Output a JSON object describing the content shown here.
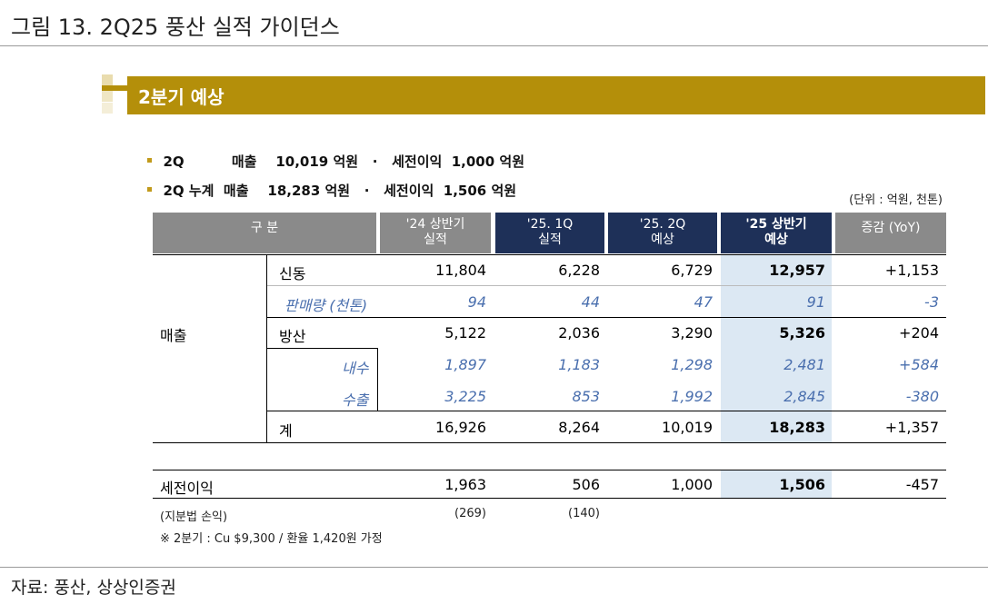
{
  "figure_title": "그림 13. 2Q25 풍산 실적 가이던스",
  "banner_title": "2분기 예상",
  "bullets": [
    {
      "label": "2Q          매출    10,019 억원   ·   세전이익  1,000 억원"
    },
    {
      "label": "2Q 누계  매출    18,283 억원   ·   세전이익  1,506 억원"
    }
  ],
  "unit_text": "(단위 : 억원, 천톤)",
  "columns": {
    "category": "구 분",
    "h24_line1": "'24 상반기",
    "h24_line2": "실적",
    "q1_line1": "'25. 1Q",
    "q1_line2": "실적",
    "q2_line1": "'25. 2Q",
    "q2_line2": "예상",
    "h25_line1": "'25 상반기",
    "h25_line2": "예상",
    "yoy": "증감 (YoY)"
  },
  "group_label": "매출",
  "rows": {
    "sindong": {
      "label": "신동",
      "v1": "11,804",
      "v2": "6,228",
      "v3": "6,729",
      "v4": "12,957",
      "v5": "+1,153"
    },
    "sales_volume": {
      "label": "판매량 (천톤)",
      "v1": "94",
      "v2": "44",
      "v3": "47",
      "v4": "91",
      "v5": "-3"
    },
    "defense": {
      "label": "방산",
      "v1": "5,122",
      "v2": "2,036",
      "v3": "3,290",
      "v4": "5,326",
      "v5": "+204"
    },
    "domestic": {
      "label": "내수",
      "v1": "1,897",
      "v2": "1,183",
      "v3": "1,298",
      "v4": "2,481",
      "v5": "+584"
    },
    "export": {
      "label": "수출",
      "v1": "3,225",
      "v2": "853",
      "v3": "1,992",
      "v4": "2,845",
      "v5": "-380"
    },
    "total": {
      "label": "계",
      "v1": "16,926",
      "v2": "8,264",
      "v3": "10,019",
      "v4": "18,283",
      "v5": "+1,357"
    },
    "pretax": {
      "label": "세전이익",
      "v1": "1,963",
      "v2": "506",
      "v3": "1,000",
      "v4": "1,506",
      "v5": "-457"
    },
    "equity": {
      "label": "(지분법 손익)",
      "v1": "(269)",
      "v2": "(140)"
    }
  },
  "footnote": "※ 2분기 : Cu $9,300 / 환율 1,420원 가정",
  "source": "자료: 풍산, 상상인증권",
  "colors": {
    "gold": "#b48f0a",
    "navy": "#1e3058",
    "gray": "#8a8a8a",
    "highlight": "#dce8f3",
    "italic_blue": "#4a6fae"
  }
}
